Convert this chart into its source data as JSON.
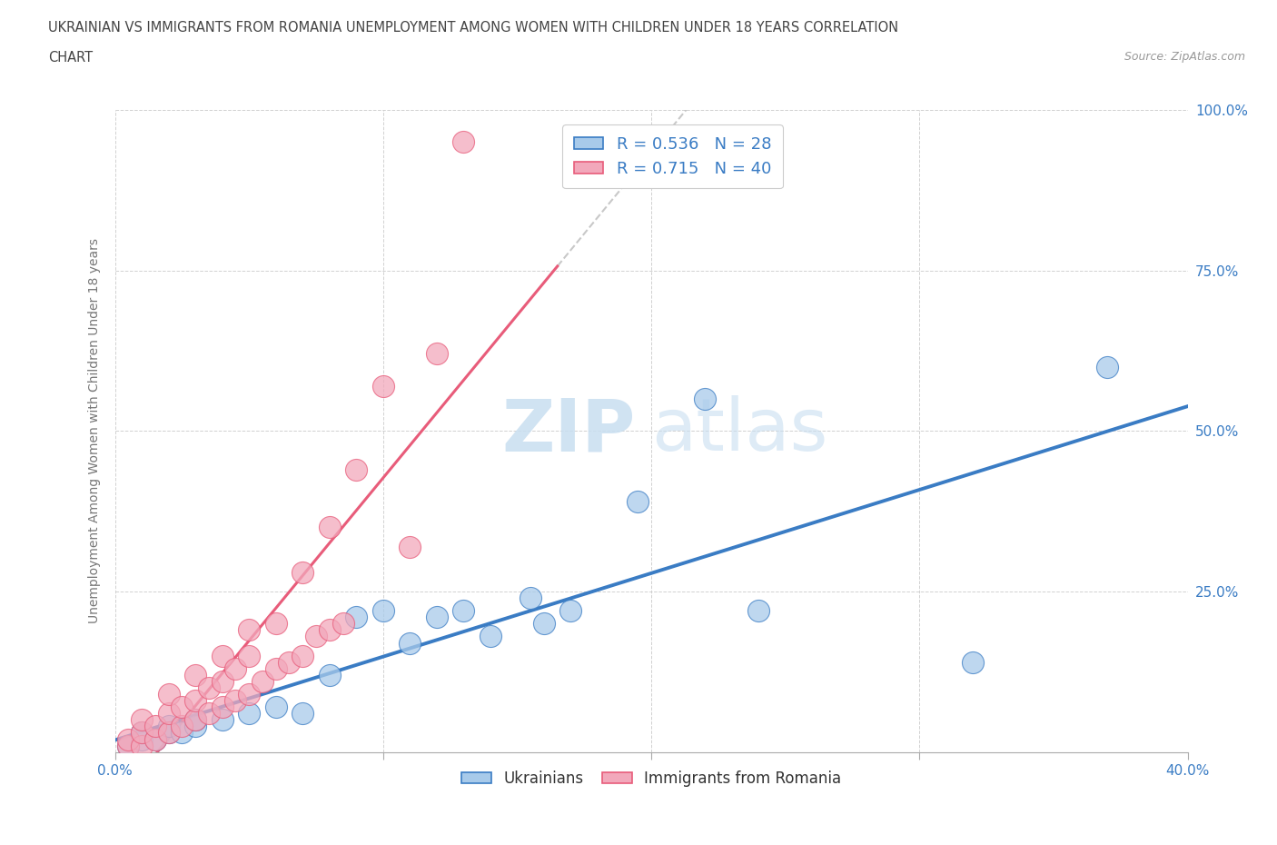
{
  "title_line1": "UKRAINIAN VS IMMIGRANTS FROM ROMANIA UNEMPLOYMENT AMONG WOMEN WITH CHILDREN UNDER 18 YEARS CORRELATION",
  "title_line2": "CHART",
  "source": "Source: ZipAtlas.com",
  "ylabel": "Unemployment Among Women with Children Under 18 years",
  "xlim": [
    0.0,
    0.4
  ],
  "ylim": [
    0.0,
    1.0
  ],
  "xticks": [
    0.0,
    0.1,
    0.2,
    0.3,
    0.4
  ],
  "yticks": [
    0.0,
    0.25,
    0.5,
    0.75,
    1.0
  ],
  "xticklabels": [
    "0.0%",
    "",
    "",
    "",
    "40.0%"
  ],
  "yticklabels_right": [
    "",
    "25.0%",
    "50.0%",
    "75.0%",
    "100.0%"
  ],
  "blue_R": 0.536,
  "blue_N": 28,
  "pink_R": 0.715,
  "pink_N": 40,
  "blue_color": "#A8CAEA",
  "pink_color": "#F2A8BB",
  "blue_line_color": "#3A7CC4",
  "pink_line_color": "#E85C7A",
  "legend_label_blue": "Ukrainians",
  "legend_label_pink": "Immigrants from Romania",
  "watermark_zip": "ZIP",
  "watermark_atlas": "atlas",
  "blue_x": [
    0.005,
    0.01,
    0.01,
    0.015,
    0.02,
    0.02,
    0.025,
    0.03,
    0.03,
    0.04,
    0.05,
    0.06,
    0.07,
    0.08,
    0.09,
    0.1,
    0.11,
    0.12,
    0.13,
    0.14,
    0.155,
    0.16,
    0.17,
    0.195,
    0.22,
    0.24,
    0.32,
    0.37
  ],
  "blue_y": [
    0.01,
    0.02,
    0.03,
    0.02,
    0.03,
    0.04,
    0.03,
    0.04,
    0.05,
    0.05,
    0.06,
    0.07,
    0.06,
    0.12,
    0.21,
    0.22,
    0.17,
    0.21,
    0.22,
    0.18,
    0.24,
    0.2,
    0.22,
    0.39,
    0.55,
    0.22,
    0.14,
    0.6
  ],
  "pink_x": [
    0.005,
    0.005,
    0.01,
    0.01,
    0.01,
    0.015,
    0.015,
    0.02,
    0.02,
    0.02,
    0.025,
    0.025,
    0.03,
    0.03,
    0.03,
    0.035,
    0.035,
    0.04,
    0.04,
    0.04,
    0.045,
    0.045,
    0.05,
    0.05,
    0.05,
    0.055,
    0.06,
    0.06,
    0.065,
    0.07,
    0.07,
    0.075,
    0.08,
    0.08,
    0.085,
    0.09,
    0.1,
    0.11,
    0.12,
    0.13
  ],
  "pink_y": [
    0.01,
    0.02,
    0.01,
    0.03,
    0.05,
    0.02,
    0.04,
    0.03,
    0.06,
    0.09,
    0.04,
    0.07,
    0.05,
    0.08,
    0.12,
    0.06,
    0.1,
    0.07,
    0.11,
    0.15,
    0.08,
    0.13,
    0.09,
    0.15,
    0.19,
    0.11,
    0.13,
    0.2,
    0.14,
    0.15,
    0.28,
    0.18,
    0.19,
    0.35,
    0.2,
    0.44,
    0.57,
    0.32,
    0.62,
    0.95
  ],
  "pink_line_x_start": 0.0,
  "pink_line_x_end": 0.165,
  "blue_line_x_start": 0.0,
  "blue_line_x_end": 0.4
}
